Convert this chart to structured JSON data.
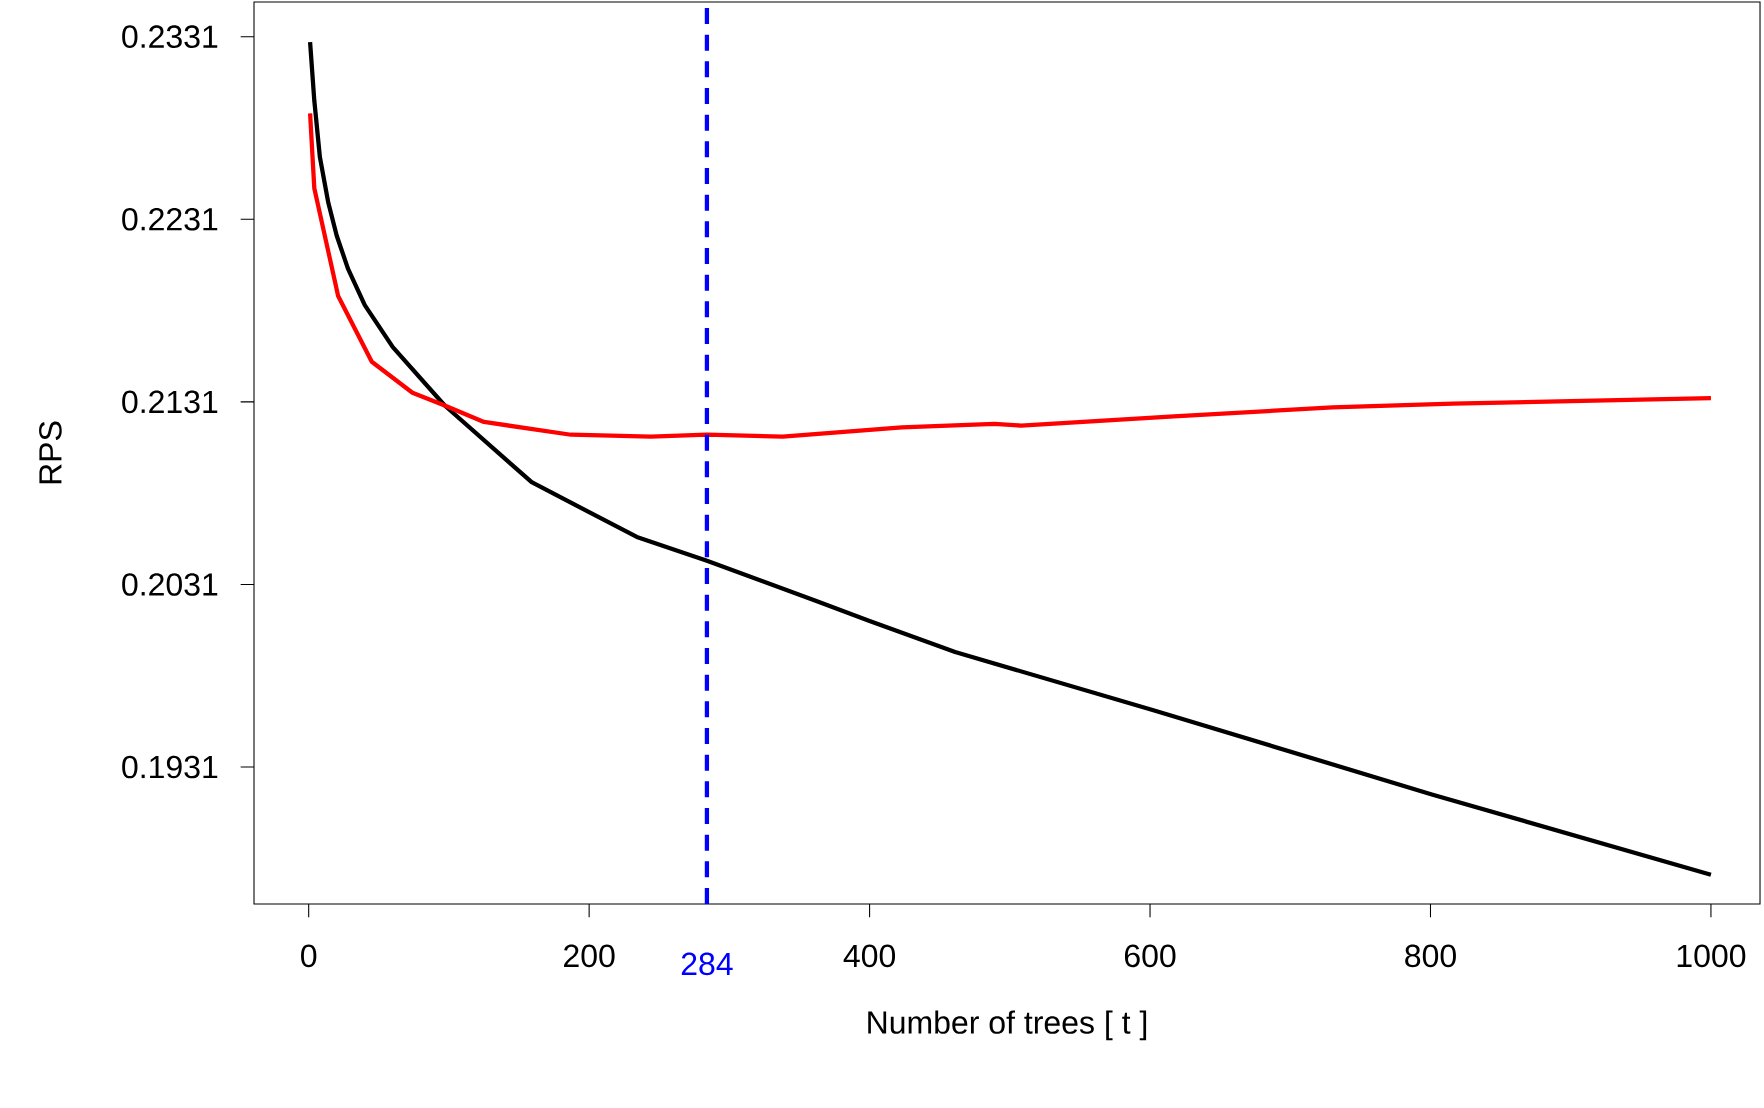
{
  "chart_data": {
    "type": "line",
    "xlabel": "Number of trees [ t ]",
    "ylabel": "RPS",
    "xlim": [
      -39,
      1035
    ],
    "ylim": [
      0.1856,
      0.235
    ],
    "xticks": [
      0,
      200,
      400,
      600,
      800,
      1000
    ],
    "yticks": [
      0.1931,
      0.2031,
      0.2131,
      0.2231,
      0.2331
    ],
    "marker": "none",
    "line_style": "solid",
    "series": [
      {
        "color": "#000000",
        "x": [
          1,
          4,
          8,
          14,
          20,
          28,
          40,
          60,
          97,
          159,
          234,
          284,
          362,
          400,
          461,
          603,
          801,
          1000
        ],
        "values": [
          0.2328,
          0.2296,
          0.2265,
          0.224,
          0.2222,
          0.2204,
          0.2184,
          0.2161,
          0.2129,
          0.2087,
          0.2057,
          0.2044,
          0.2022,
          0.2011,
          0.1994,
          0.1962,
          0.1916,
          0.1872
        ]
      },
      {
        "color": "#ff0000",
        "x": [
          1,
          4,
          21,
          45,
          74,
          97,
          125,
          187,
          244,
          284,
          338,
          423,
          489,
          508,
          617,
          730,
          816,
          1000
        ],
        "values": [
          0.2289,
          0.2248,
          0.2189,
          0.2153,
          0.2136,
          0.2129,
          0.212,
          0.2113,
          0.2112,
          0.2113,
          0.2112,
          0.2117,
          0.2119,
          0.2118,
          0.2123,
          0.2128,
          0.213,
          0.2133
        ]
      }
    ],
    "ref_lines": [
      {
        "axis": "x",
        "value": 284,
        "label": "284",
        "color": "#0000ff",
        "line_style": "dashed"
      }
    ]
  }
}
